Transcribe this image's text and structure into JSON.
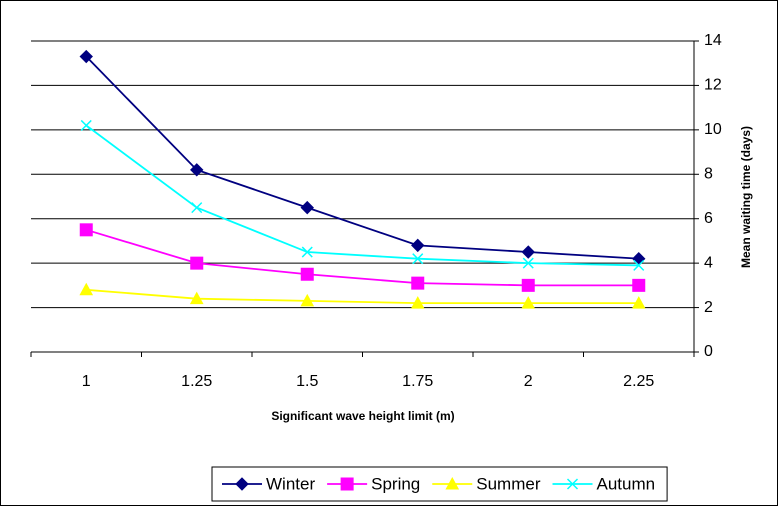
{
  "chart_data": {
    "type": "line",
    "x_label": "Significant wave height limit (m)",
    "y_label": "Mean waiting time (days)",
    "categories": [
      "1",
      "1.25",
      "1.5",
      "1.75",
      "2",
      "2.25"
    ],
    "series": [
      {
        "name": "Winter",
        "color": "#000080",
        "marker": "diamond",
        "values": [
          13.3,
          8.2,
          6.5,
          4.8,
          4.5,
          4.2
        ]
      },
      {
        "name": "Spring",
        "color": "#ff00ff",
        "marker": "square",
        "values": [
          5.5,
          4.0,
          3.5,
          3.1,
          3.0,
          3.0
        ]
      },
      {
        "name": "Summer",
        "color": "#ffff00",
        "marker": "triangle",
        "values": [
          2.8,
          2.4,
          2.3,
          2.2,
          2.2,
          2.2
        ]
      },
      {
        "name": "Autumn",
        "color": "#00ffff",
        "marker": "x",
        "values": [
          10.2,
          6.5,
          4.5,
          4.2,
          4.0,
          3.9
        ]
      }
    ],
    "ylim": [
      0,
      14
    ],
    "yticks": [
      0,
      2,
      4,
      6,
      8,
      10,
      12,
      14
    ],
    "y_axis_side": "right",
    "grid": true,
    "legend": "bottom"
  }
}
